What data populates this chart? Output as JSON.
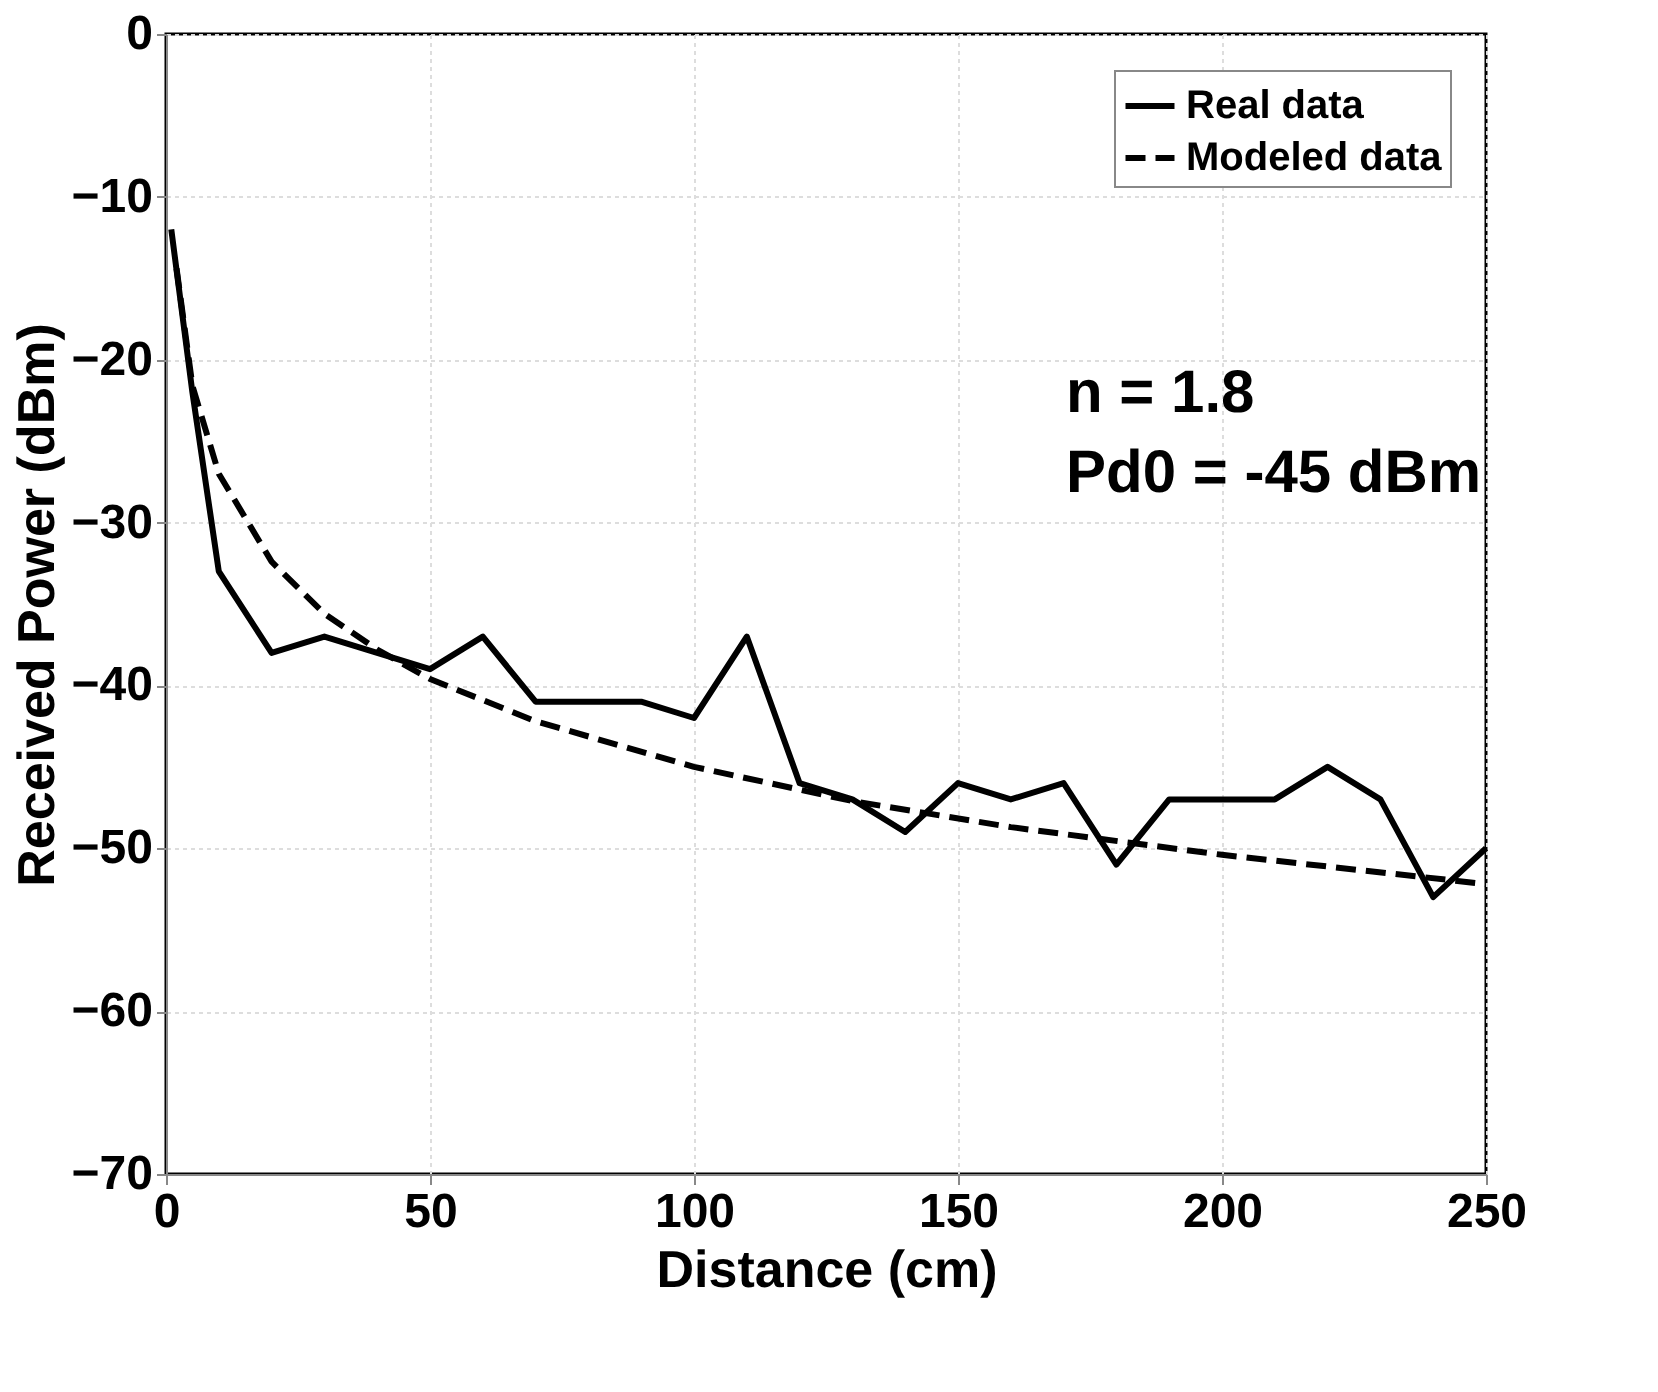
{
  "chart_data": {
    "type": "line",
    "xlabel": "Distance (cm)",
    "ylabel": "Received Power (dBm)",
    "series": [
      {
        "name": "Real data",
        "color": "#000000",
        "line_style": "solid",
        "x": [
          1,
          5,
          10,
          20,
          30,
          40,
          50,
          60,
          70,
          80,
          90,
          100,
          110,
          120,
          130,
          140,
          150,
          160,
          170,
          180,
          190,
          200,
          210,
          220,
          230,
          240,
          250
        ],
        "values": [
          -12,
          -22,
          -33,
          -38,
          -37,
          -38,
          -39,
          -37,
          -41,
          -41,
          -41,
          -42,
          -37,
          -46,
          -47,
          -49,
          -46,
          -47,
          -46,
          -51,
          -47,
          -47,
          -47,
          -45,
          -47,
          -53,
          -50
        ]
      },
      {
        "name": "Modeled data",
        "color": "#000000",
        "line_style": "dashed",
        "x": [
          2,
          5,
          10,
          20,
          30,
          40,
          50,
          70,
          100,
          130,
          160,
          200,
          250
        ],
        "values": [
          -14.4,
          -21.6,
          -27,
          -32.4,
          -35.6,
          -37.8,
          -39.6,
          -42.2,
          -45,
          -47.1,
          -48.7,
          -50.4,
          -52.2
        ]
      }
    ],
    "xlim": [
      0,
      250
    ],
    "xticks": [
      0,
      50,
      100,
      150,
      200,
      250
    ],
    "ylim": [
      -70,
      0
    ],
    "yticks": [
      -70,
      -60,
      -50,
      -40,
      -30,
      -20,
      -10,
      0
    ],
    "grid": true,
    "legend": "top right",
    "annotations": [
      "n = 1.8\nPd0 = -45 dBm"
    ]
  }
}
